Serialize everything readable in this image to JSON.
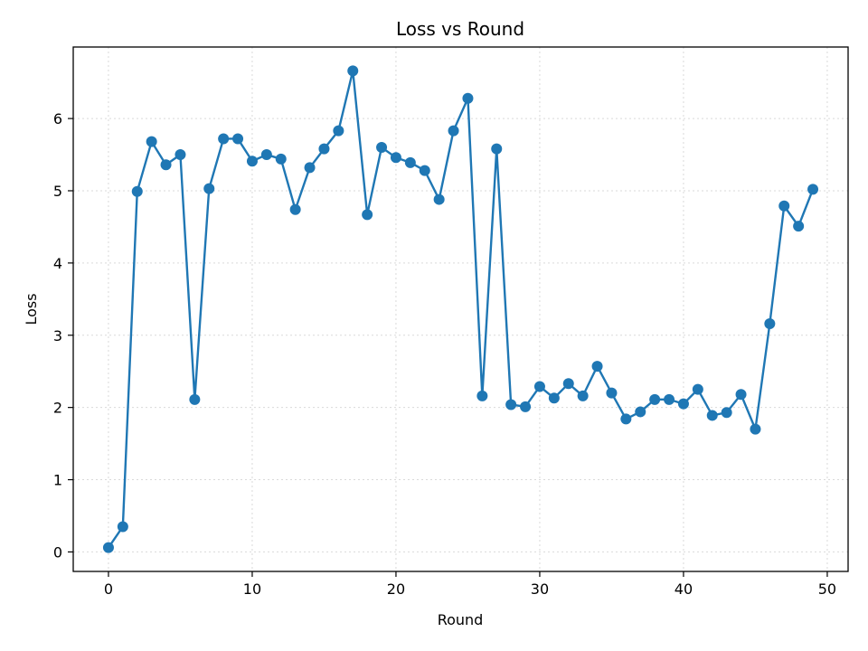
{
  "chart_data": {
    "type": "line",
    "title": "Loss vs Round",
    "xlabel": "Round",
    "ylabel": "Loss",
    "xlim": [
      -2.45,
      51.45
    ],
    "ylim": [
      -0.27,
      6.99
    ],
    "xticks": [
      0,
      10,
      20,
      30,
      40,
      50
    ],
    "yticks": [
      0,
      1,
      2,
      3,
      4,
      5,
      6
    ],
    "grid": true,
    "legend": "none",
    "colors": {
      "line": "#1f77b4",
      "grid": "#d9d9d9",
      "axis": "#000000"
    },
    "series": [
      {
        "x": [
          0,
          1,
          2,
          3,
          4,
          5,
          6,
          7,
          8,
          9,
          10,
          11,
          12,
          13,
          14,
          15,
          16,
          17,
          18,
          19,
          20,
          21,
          22,
          23,
          24,
          25,
          26,
          27,
          28,
          29,
          30,
          31,
          32,
          33,
          34,
          35,
          36,
          37,
          38,
          39,
          40,
          41,
          42,
          43,
          44,
          45,
          46,
          47,
          48,
          49
        ],
        "values": [
          0.06,
          0.35,
          4.99,
          5.68,
          5.36,
          5.5,
          2.11,
          5.03,
          5.72,
          5.72,
          5.41,
          5.5,
          5.44,
          4.74,
          5.32,
          5.58,
          5.83,
          6.66,
          4.67,
          5.6,
          5.46,
          5.39,
          5.28,
          4.88,
          5.83,
          6.28,
          2.16,
          5.58,
          2.04,
          2.01,
          2.29,
          2.13,
          2.33,
          2.16,
          2.57,
          2.2,
          1.84,
          1.94,
          2.11,
          2.11,
          2.05,
          2.25,
          1.89,
          1.93,
          2.18,
          1.7,
          3.16,
          4.79,
          4.51,
          5.02
        ]
      }
    ]
  }
}
